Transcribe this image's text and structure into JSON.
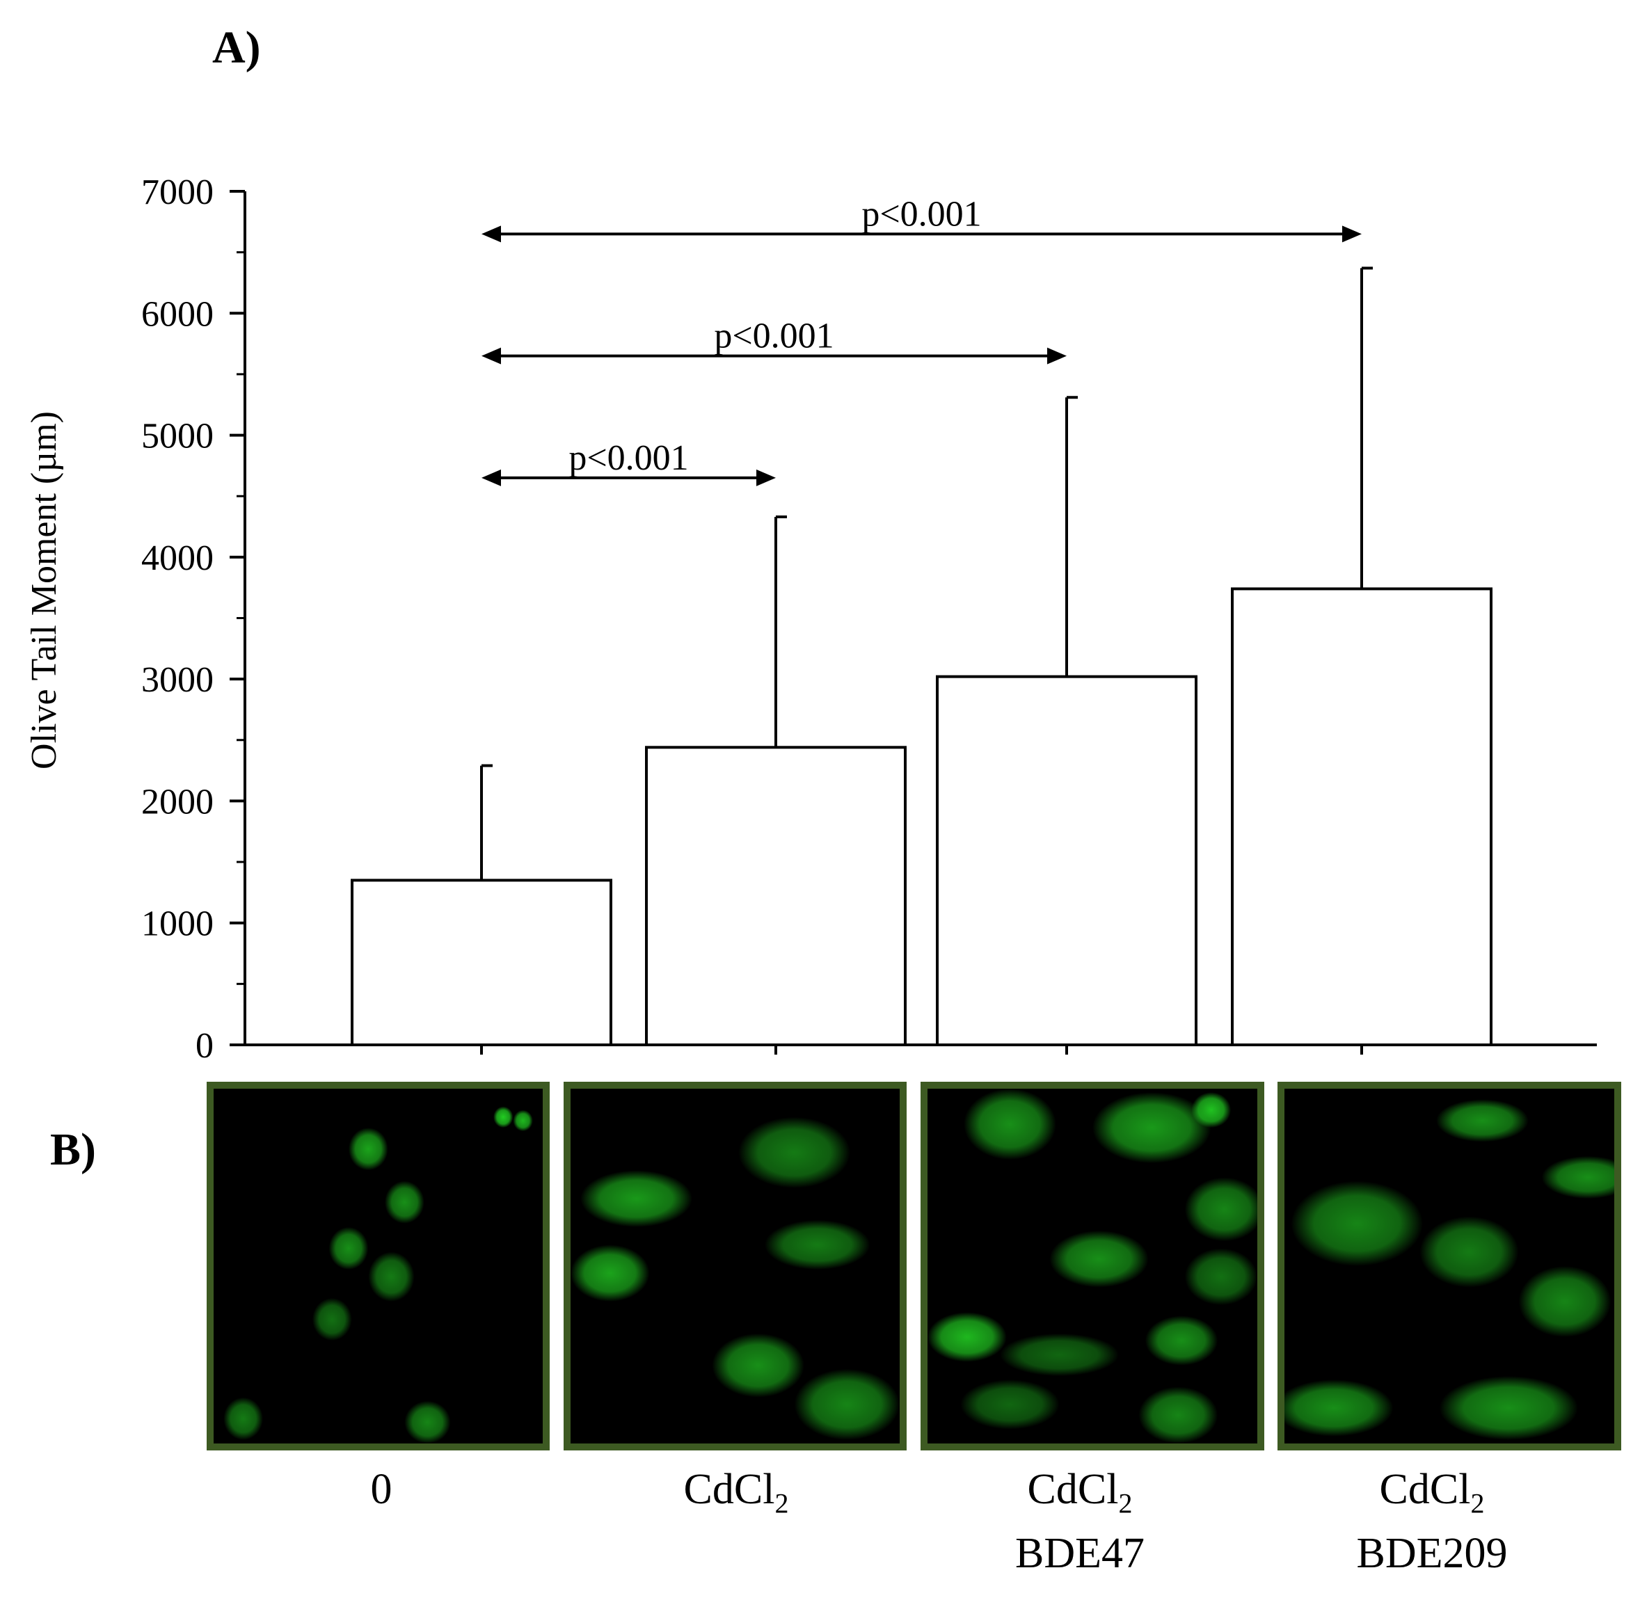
{
  "panels": {
    "a_label": "A)",
    "b_label": "B)"
  },
  "chart_data": {
    "type": "bar",
    "categories": [
      "0",
      "CdCl2",
      "CdCl2 BDE47",
      "CdCl2 BDE209"
    ],
    "category_labels": [
      {
        "main": "0",
        "sub": "",
        "line2": ""
      },
      {
        "main": "CdCl",
        "sub": "2",
        "line2": ""
      },
      {
        "main": "CdCl",
        "sub": "2",
        "line2": "BDE47"
      },
      {
        "main": "CdCl",
        "sub": "2",
        "line2": "BDE209"
      }
    ],
    "values": [
      1350,
      2440,
      3020,
      3740
    ],
    "error_upper": [
      2290,
      4330,
      5310,
      6370
    ],
    "ylabel": "Olive Tail Moment (µm)",
    "xlabel": "",
    "ylim": [
      0,
      7000
    ],
    "yticks": [
      0,
      1000,
      2000,
      3000,
      4000,
      5000,
      6000,
      7000
    ],
    "bar_color": "#ffffff",
    "edge_color": "#000000",
    "significance": [
      {
        "from": 0,
        "to": 1,
        "label": "p<0.001",
        "y": 4650
      },
      {
        "from": 0,
        "to": 2,
        "label": "p<0.001",
        "y": 5650
      },
      {
        "from": 0,
        "to": 3,
        "label": "p<0.001",
        "y": 6650
      }
    ]
  },
  "micrographs": {
    "frame_color": "#3d5a22",
    "cell_color": "#22cc22",
    "images": [
      {
        "condition": "0"
      },
      {
        "condition": "CdCl2"
      },
      {
        "condition": "CdCl2 BDE47"
      },
      {
        "condition": "CdCl2 BDE209"
      }
    ]
  }
}
